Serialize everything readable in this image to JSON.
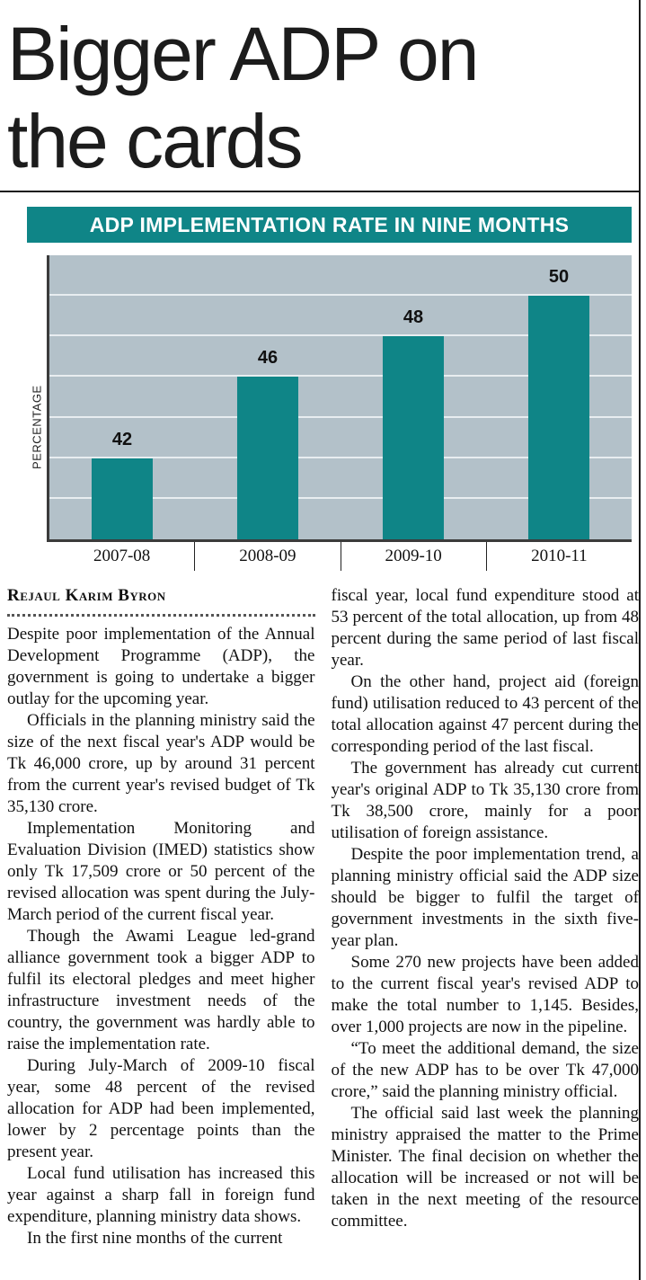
{
  "headline": "Bigger ADP on\nthe cards",
  "byline": "Rejaul Karim Byron",
  "colors": {
    "teal": "#0f8587",
    "plot_bg": "#b3c1c9",
    "gridline": "#e8edf0",
    "axis": "#3b3b3b",
    "banner_text": "#ffffff"
  },
  "chart_data": {
    "type": "bar",
    "title": "ADP IMPLEMENTATION RATE IN NINE MONTHS",
    "categories": [
      "2007-08",
      "2008-09",
      "2009-10",
      "2010-11"
    ],
    "values": [
      42,
      46,
      48,
      50
    ],
    "xlabel": "",
    "ylabel": "PERCENTAGE",
    "ylim": [
      38,
      52
    ],
    "grid_step": 2,
    "grid": true,
    "legend": false,
    "value_labels": true
  },
  "article": {
    "column_left": [
      "Despite poor implementation of the Annual Development Programme (ADP), the government is going to undertake a bigger outlay for the upcoming year.",
      "Officials in the planning ministry said the size of the next fiscal year's ADP would be Tk 46,000 crore, up by around 31 percent from the current year's revised budget of Tk 35,130 crore.",
      "Implementation Monitoring and Evaluation Division (IMED) statistics show only Tk 17,509 crore or 50 percent of the revised allocation was spent during the July-March period of the current fiscal year.",
      "Though the Awami League led-grand alliance government took a bigger ADP to fulfil its electoral pledges and meet higher infrastructure investment needs of the country, the government was hardly able to raise the implementation rate.",
      "During July-March of 2009-10 fiscal year, some 48 percent of the revised allocation for ADP had been implemented, lower by 2 percentage points than the present year.",
      "Local fund utilisation has increased this year against a sharp fall in foreign fund expenditure, planning ministry data shows.",
      "In the first nine months of the current"
    ],
    "column_right": [
      "fiscal year, local fund expenditure stood at 53 percent of the total allocation, up from 48 percent during the same period of last fiscal year.",
      "On the other hand, project aid (foreign fund) utilisation reduced to 43 percent of the total allocation against 47 percent during the corresponding period of the last fiscal.",
      "The government has already cut current year's original ADP to Tk 35,130 crore from Tk 38,500 crore, mainly for a poor utilisation of foreign assistance.",
      "Despite the poor implementation trend, a planning ministry official said the ADP size should be bigger to fulfil the target of government investments in the sixth five-year plan.",
      "Some 270 new projects have been added to the current fiscal year's revised ADP to make the total number to 1,145. Besides, over 1,000 projects are now in the pipeline.",
      "“To meet the additional demand, the size of the new ADP has to be over Tk 47,000 crore,” said the planning ministry official.",
      "The official said last week the planning ministry appraised the matter to the Prime Minister. The final decision on whether the allocation will be increased or not will be taken in the next meeting of the resource committee."
    ]
  }
}
